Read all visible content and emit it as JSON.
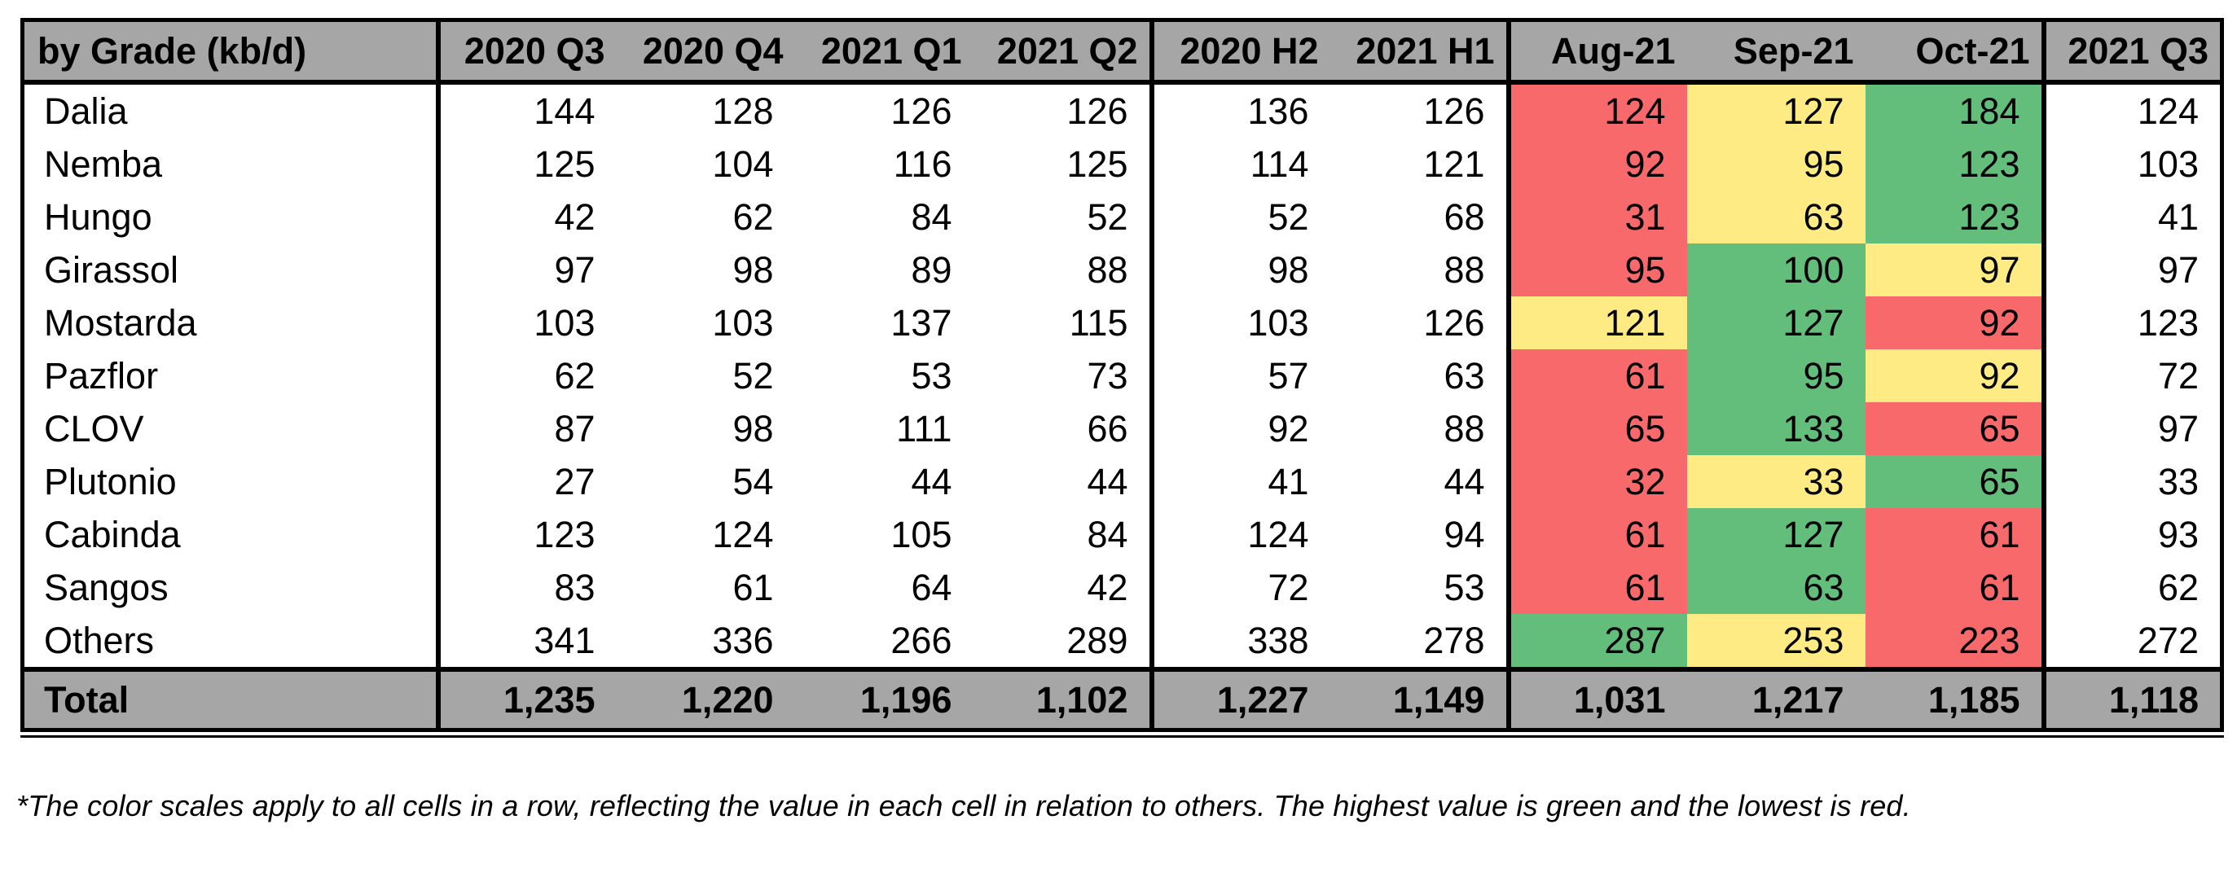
{
  "palette": {
    "red": "#F8696B",
    "yellow": "#FFEB84",
    "green": "#63BE7B",
    "header_bg": "#A6A6A6",
    "border": "#000000",
    "text": "#000000"
  },
  "header": {
    "corner_label": "by Grade (kb/d)"
  },
  "footnote": "*The color scales apply to all cells in a row, reflecting the value in each cell in relation to others. The highest value is green and the lowest is red.",
  "chart_data": {
    "type": "table",
    "row_header_label": "by Grade (kb/d)",
    "columns": [
      "2020 Q3",
      "2020 Q4",
      "2021 Q1",
      "2021 Q2",
      "2020 H2",
      "2021 H1",
      "Aug-21",
      "Sep-21",
      "Oct-21",
      "2021 Q3"
    ],
    "column_group_starts": [
      0,
      4,
      6,
      9
    ],
    "month_color_columns": [
      "Aug-21",
      "Sep-21",
      "Oct-21"
    ],
    "color_rule": "per row: highest of Aug/Sep/Oct = green, middle = yellow, lowest = red",
    "rows": [
      {
        "grade": "Dalia",
        "values": [
          144,
          128,
          126,
          126,
          136,
          126,
          124,
          127,
          184,
          124
        ],
        "month_colors": [
          "red",
          "yellow",
          "green"
        ]
      },
      {
        "grade": "Nemba",
        "values": [
          125,
          104,
          116,
          125,
          114,
          121,
          92,
          95,
          123,
          103
        ],
        "month_colors": [
          "red",
          "yellow",
          "green"
        ]
      },
      {
        "grade": "Hungo",
        "values": [
          42,
          62,
          84,
          52,
          52,
          68,
          31,
          63,
          123,
          41
        ],
        "month_colors": [
          "red",
          "yellow",
          "green"
        ]
      },
      {
        "grade": "Girassol",
        "values": [
          97,
          98,
          89,
          88,
          98,
          88,
          95,
          100,
          97,
          97
        ],
        "month_colors": [
          "red",
          "green",
          "yellow"
        ]
      },
      {
        "grade": "Mostarda",
        "values": [
          103,
          103,
          137,
          115,
          103,
          126,
          121,
          127,
          92,
          123
        ],
        "month_colors": [
          "yellow",
          "green",
          "red"
        ]
      },
      {
        "grade": "Pazflor",
        "values": [
          62,
          52,
          53,
          73,
          57,
          63,
          61,
          95,
          92,
          72
        ],
        "month_colors": [
          "red",
          "green",
          "yellow"
        ]
      },
      {
        "grade": "CLOV",
        "values": [
          87,
          98,
          111,
          66,
          92,
          88,
          65,
          133,
          65,
          97
        ],
        "month_colors": [
          "red",
          "green",
          "red"
        ]
      },
      {
        "grade": "Plutonio",
        "values": [
          27,
          54,
          44,
          44,
          41,
          44,
          32,
          33,
          65,
          33
        ],
        "month_colors": [
          "red",
          "yellow",
          "green"
        ]
      },
      {
        "grade": "Cabinda",
        "values": [
          123,
          124,
          105,
          84,
          124,
          94,
          61,
          127,
          61,
          93
        ],
        "month_colors": [
          "red",
          "green",
          "red"
        ]
      },
      {
        "grade": "Sangos",
        "values": [
          83,
          61,
          64,
          42,
          72,
          53,
          61,
          63,
          61,
          62
        ],
        "month_colors": [
          "red",
          "green",
          "red"
        ]
      },
      {
        "grade": "Others",
        "values": [
          341,
          336,
          266,
          289,
          338,
          278,
          287,
          253,
          223,
          272
        ],
        "month_colors": [
          "green",
          "yellow",
          "red"
        ]
      }
    ],
    "total": {
      "label": "Total",
      "values": [
        1235,
        1220,
        1196,
        1102,
        1227,
        1149,
        1031,
        1217,
        1185,
        1118
      ]
    }
  }
}
